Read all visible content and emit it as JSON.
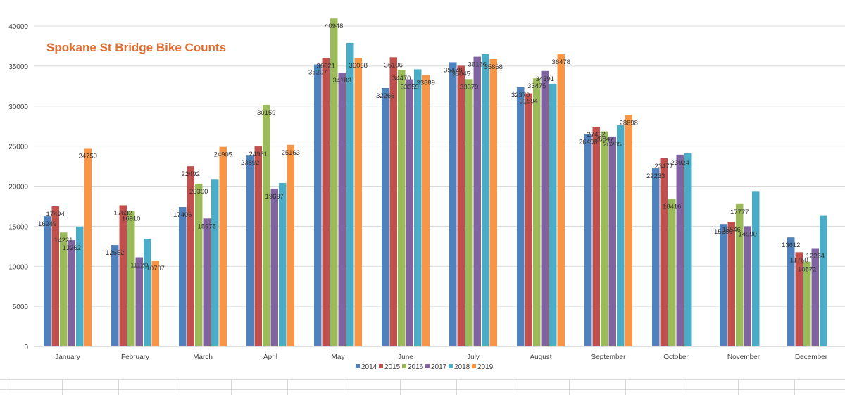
{
  "chart_data": {
    "type": "bar",
    "title": "Spokane St Bridge Bike Counts",
    "xlabel": "",
    "ylabel": "",
    "ylim": [
      0,
      40000
    ],
    "ytick_step": 5000,
    "grid": true,
    "legend_position": "bottom",
    "categories": [
      "January",
      "February",
      "March",
      "April",
      "May",
      "June",
      "July",
      "August",
      "September",
      "October",
      "November",
      "December"
    ],
    "series": [
      {
        "name": "2014",
        "color": "#4f81bd",
        "values": [
          16249,
          12652,
          17406,
          23892,
          35207,
          32266,
          35478,
          32370,
          26498,
          22233,
          15280,
          13612
        ],
        "labels": [
          "16249",
          "12652",
          "17406",
          "23892",
          "35207",
          "32266",
          "35478",
          "32370",
          "26498",
          "22233",
          "15280",
          "13612"
        ]
      },
      {
        "name": "2015",
        "color": "#c0504d",
        "values": [
          17494,
          17632,
          22492,
          24961,
          36021,
          36106,
          35045,
          31594,
          27432,
          23477,
          15546,
          11750
        ],
        "labels": [
          "17494",
          "17632",
          "22492",
          "24961",
          "36021",
          "36106",
          "35045",
          "31594",
          "27432",
          "23477",
          "15546",
          "11750"
        ]
      },
      {
        "name": "2016",
        "color": "#9bbb59",
        "values": [
          14221,
          16910,
          20300,
          30159,
          40948,
          34470,
          33379,
          33475,
          26847,
          18416,
          17777,
          10572
        ],
        "labels": [
          "14221",
          "16910",
          "20300",
          "30159",
          "40948",
          "34470",
          "33379",
          "33475",
          "26847",
          "18416",
          "17777",
          "10572"
        ]
      },
      {
        "name": "2017",
        "color": "#8064a2",
        "values": [
          13262,
          11120,
          15975,
          19697,
          34183,
          33359,
          36166,
          34391,
          26205,
          23924,
          14990,
          12264
        ],
        "labels": [
          "13262",
          "11120",
          "15975",
          "19697",
          "34183",
          "33359",
          "36166",
          "34391",
          "26205",
          "23924",
          "14990",
          "12264"
        ]
      },
      {
        "name": "2018",
        "color": "#4bacc6",
        "values": [
          14950,
          13450,
          20900,
          20400,
          37900,
          34600,
          36500,
          32800,
          27600,
          24100,
          19400,
          16300
        ],
        "labels": [
          "",
          "",
          "",
          "",
          "",
          "",
          "",
          "",
          "",
          "",
          "",
          ""
        ]
      },
      {
        "name": "2019",
        "color": "#f79646",
        "values": [
          24750,
          10707,
          24905,
          25163,
          36038,
          33889,
          35868,
          36478,
          28898,
          null,
          null,
          null
        ],
        "labels": [
          "24750",
          "10707",
          "24905",
          "25163",
          "36038",
          "33889",
          "35868",
          "36478",
          "28898",
          "",
          "",
          ""
        ]
      }
    ]
  }
}
